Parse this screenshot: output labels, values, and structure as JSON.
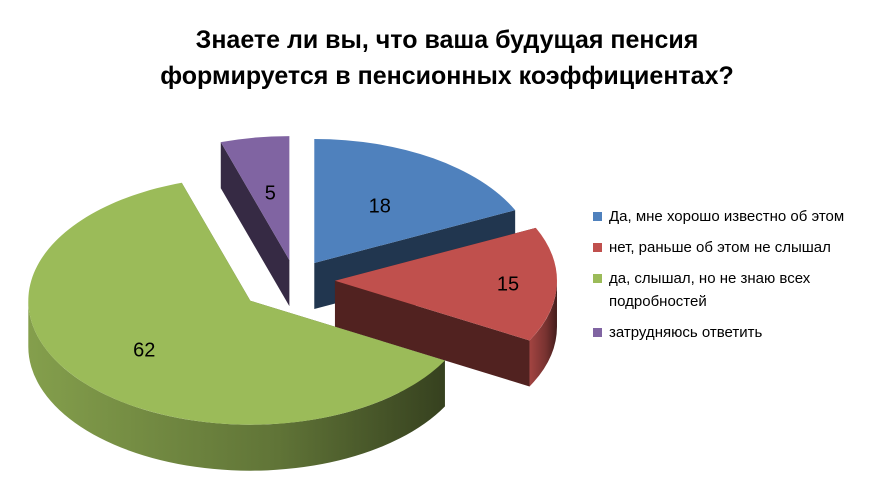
{
  "chart_data": {
    "type": "pie",
    "title_lines": [
      "Знаете ли вы, что ваша будущая пенсия",
      "формируется в пенсионных коэффициентах?"
    ],
    "categories": [
      "Да, мне хорошо известно об этом",
      "нет, раньше об этом не слышал",
      "да, слышал, но не знаю всех подробностей",
      "затрудняюсь ответить"
    ],
    "values": [
      18,
      15,
      62,
      5
    ],
    "data_labels": [
      "18",
      "15",
      "62",
      "5"
    ],
    "colors": [
      "#4F81BD",
      "#C0504D",
      "#9BBB59",
      "#8064A2"
    ],
    "style": "3d-exploded",
    "legend_position": "right"
  }
}
